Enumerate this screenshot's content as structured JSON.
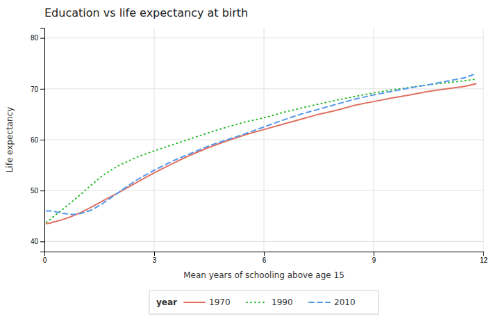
{
  "chart_data": {
    "type": "line",
    "title": "Education vs life expectancy at birth",
    "x_label": "Mean years of schooling above age 15",
    "y_label": "Life expectancy",
    "xlim": [
      0,
      12
    ],
    "ylim": [
      38,
      82
    ],
    "xticks": [
      0,
      3,
      6,
      9,
      12
    ],
    "yticks": [
      40,
      50,
      60,
      70,
      80
    ],
    "grid": true,
    "legend": "bottom",
    "legend_title": "year",
    "series": [
      {
        "name": "1970",
        "color": "#e07060",
        "line_style": "solid",
        "x": [
          0.05,
          0.15,
          0.3,
          0.5,
          0.7,
          1.0,
          1.3,
          1.6,
          2.0,
          2.5,
          3.0,
          3.5,
          4.0,
          4.5,
          5.0,
          5.5,
          6.0,
          6.5,
          7.0,
          7.5,
          8.0,
          8.5,
          9.0,
          9.5,
          10.0,
          10.5,
          11.0,
          11.5,
          11.8
        ],
        "values": [
          43.5,
          43.6,
          43.9,
          44.3,
          44.8,
          45.7,
          46.8,
          48.0,
          49.5,
          51.5,
          53.5,
          55.3,
          57.0,
          58.5,
          59.8,
          61.0,
          62.0,
          63.0,
          64.0,
          65.0,
          65.8,
          66.8,
          67.5,
          68.2,
          68.8,
          69.5,
          70.0,
          70.5,
          71.0
        ]
      },
      {
        "name": "1990",
        "color": "#22bb22",
        "line_style": "dotted",
        "x": [
          0.05,
          0.15,
          0.3,
          0.5,
          0.7,
          1.0,
          1.3,
          1.6,
          2.0,
          2.5,
          3.0,
          3.5,
          4.0,
          4.5,
          5.0,
          5.5,
          6.0,
          6.5,
          7.0,
          7.5,
          8.0,
          8.5,
          9.0,
          9.5,
          10.0,
          10.5,
          11.0,
          11.5,
          11.8
        ],
        "values": [
          43.8,
          44.3,
          45.2,
          46.3,
          47.5,
          49.3,
          51.2,
          53.0,
          54.8,
          56.5,
          57.8,
          59.0,
          60.2,
          61.4,
          62.5,
          63.5,
          64.3,
          65.3,
          66.2,
          67.0,
          67.8,
          68.5,
          69.2,
          69.8,
          70.3,
          70.8,
          71.2,
          71.6,
          71.9
        ]
      },
      {
        "name": "2010",
        "color": "#5599ee",
        "line_style": "dashed",
        "x": [
          0.05,
          0.2,
          0.5,
          0.8,
          1.0,
          1.3,
          1.6,
          2.0,
          2.5,
          3.0,
          3.5,
          4.0,
          4.5,
          5.0,
          5.5,
          6.0,
          6.5,
          7.0,
          7.5,
          8.0,
          8.5,
          9.0,
          9.5,
          10.0,
          10.5,
          11.0,
          11.5,
          11.8
        ],
        "values": [
          46.0,
          46.0,
          45.5,
          45.3,
          45.5,
          46.2,
          47.5,
          49.5,
          52.0,
          54.0,
          55.8,
          57.3,
          58.8,
          60.0,
          61.2,
          62.5,
          63.8,
          65.0,
          66.0,
          67.0,
          68.0,
          68.8,
          69.5,
          70.2,
          70.8,
          71.5,
          72.2,
          73.0
        ]
      }
    ]
  }
}
